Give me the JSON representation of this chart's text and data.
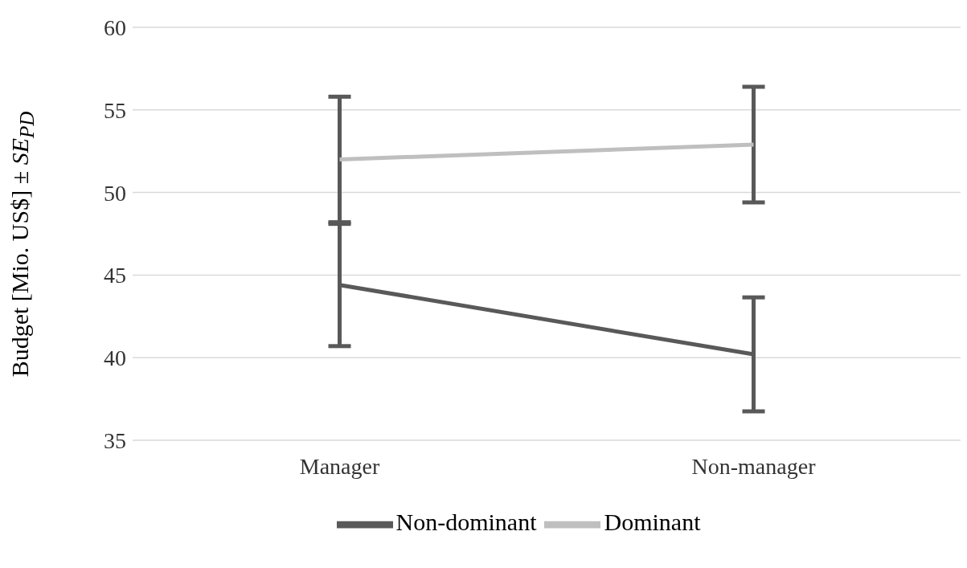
{
  "chart_data": {
    "type": "line",
    "ylabel": "Budget [Mio. US$]  ± SE$_{PD}$",
    "categories": [
      "Manager",
      "Non-manager"
    ],
    "series": [
      {
        "name": "Non-dominant",
        "color": "#595959",
        "values": [
          44.4,
          40.2
        ],
        "errors": [
          3.7,
          3.45
        ]
      },
      {
        "name": "Dominant",
        "color": "#bfbfbf",
        "values": [
          52.0,
          52.9
        ],
        "errors": [
          3.8,
          3.5
        ]
      }
    ],
    "ylim": [
      35,
      60
    ],
    "yticks": [
      35,
      40,
      45,
      50,
      55,
      60
    ],
    "grid": "y",
    "legend": "bottom",
    "marker": "none",
    "line_style": "solid"
  }
}
